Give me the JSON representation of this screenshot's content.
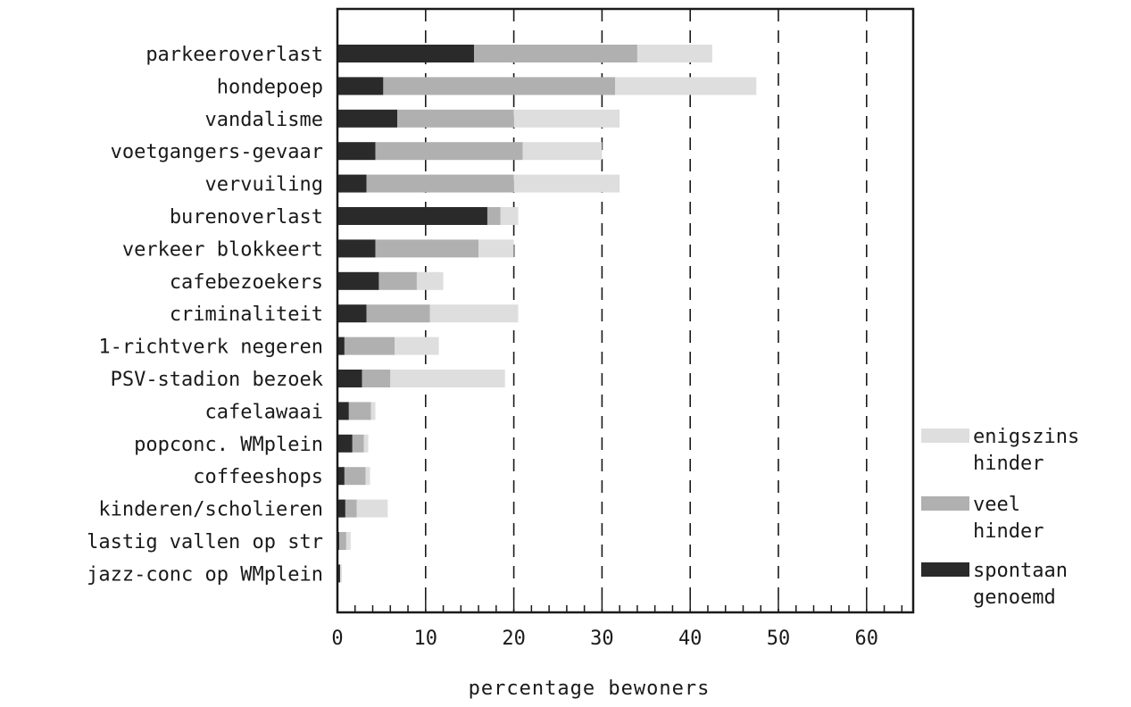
{
  "chart_data": {
    "type": "bar",
    "orientation": "horizontal",
    "stacked": true,
    "xlabel": "percentage bewoners",
    "xlim": [
      0,
      65
    ],
    "xticks": [
      0,
      10,
      20,
      30,
      40,
      50,
      60
    ],
    "xtick_labels": [
      "0",
      "10",
      "20",
      "30",
      "40",
      "50",
      "60"
    ],
    "grid": "vertical dashed at each 10",
    "legend_position": "right",
    "categories": [
      "parkeeroverlast",
      "hondepoep",
      "vandalisme",
      "voetgangers-gevaar",
      "vervuiling",
      "burenoverlast",
      "verkeer blokkeert",
      "cafebezoekers",
      "criminaliteit",
      "1-richtverk negeren",
      "PSV-stadion bezoek",
      "cafelawaai",
      "popconc. WMplein",
      "coffeeshops",
      "kinderen/scholieren",
      "lastig vallen op str",
      "jazz-conc op WMplein"
    ],
    "series": [
      {
        "name": "spontaan genoemd",
        "color": "#2a2a2a",
        "values": [
          15.5,
          5.2,
          6.8,
          4.3,
          3.3,
          17.0,
          4.3,
          4.7,
          3.3,
          0.8,
          2.8,
          1.3,
          1.7,
          0.8,
          0.9,
          0.2,
          0.3
        ]
      },
      {
        "name": "veel hinder",
        "color": "#b0b0b0",
        "values": [
          18.5,
          26.3,
          13.2,
          16.7,
          16.7,
          1.5,
          11.7,
          4.3,
          7.2,
          5.7,
          3.2,
          2.5,
          1.3,
          2.4,
          1.3,
          0.8,
          0.0
        ]
      },
      {
        "name": "enigszins hinder",
        "color": "#dedede",
        "values": [
          8.5,
          16.0,
          12.0,
          9.0,
          12.0,
          2.0,
          4.0,
          3.0,
          10.0,
          5.0,
          13.0,
          0.5,
          0.5,
          0.5,
          3.5,
          0.5,
          0.2
        ]
      }
    ],
    "legend": [
      {
        "series": "enigszins hinder",
        "lines": [
          "enigszins",
          "hinder"
        ]
      },
      {
        "series": "veel hinder",
        "lines": [
          "veel",
          "hinder"
        ]
      },
      {
        "series": "spontaan genoemd",
        "lines": [
          "spontaan",
          "genoemd"
        ]
      }
    ]
  }
}
